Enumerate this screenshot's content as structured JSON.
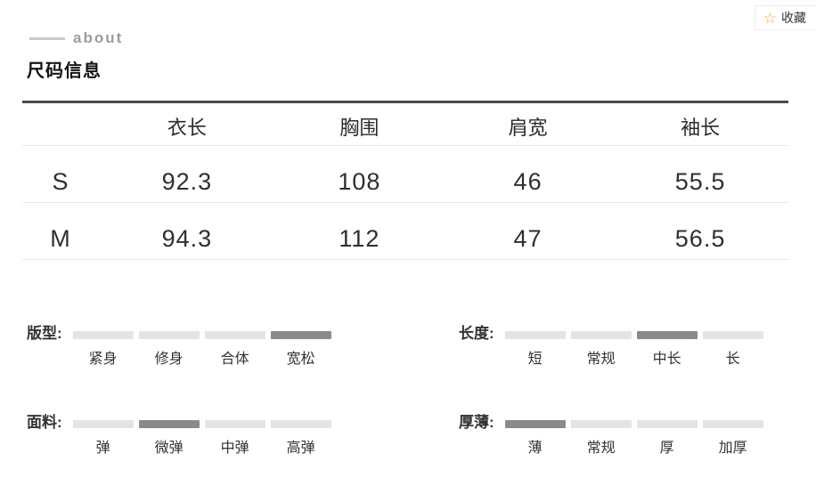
{
  "header": {
    "about_label": "about",
    "title": "尺码信息",
    "favorite_button": {
      "icon": "☆",
      "label": "收藏"
    }
  },
  "size_table": {
    "columns": [
      "",
      "衣长",
      "胸围",
      "肩宽",
      "袖长"
    ],
    "rows": [
      {
        "size": "S",
        "values": [
          "92.3",
          "108",
          "46",
          "55.5"
        ]
      },
      {
        "size": "M",
        "values": [
          "94.3",
          "112",
          "47",
          "56.5"
        ]
      }
    ]
  },
  "attributes": [
    {
      "label": "版型:",
      "options": [
        "紧身",
        "修身",
        "合体",
        "宽松"
      ],
      "selected": 3
    },
    {
      "label": "长度:",
      "options": [
        "短",
        "常规",
        "中长",
        "长"
      ],
      "selected": 2
    },
    {
      "label": "面料:",
      "options": [
        "弹",
        "微弹",
        "中弹",
        "高弹"
      ],
      "selected": 1
    },
    {
      "label": "厚薄:",
      "options": [
        "薄",
        "常规",
        "厚",
        "加厚"
      ],
      "selected": 0
    }
  ],
  "colors": {
    "bar_default": "#e4e4e4",
    "bar_selected": "#8a8a8a",
    "row_line": "#eaeaea",
    "table_top_border": "#4a4a4a",
    "star": "#f5a623"
  }
}
